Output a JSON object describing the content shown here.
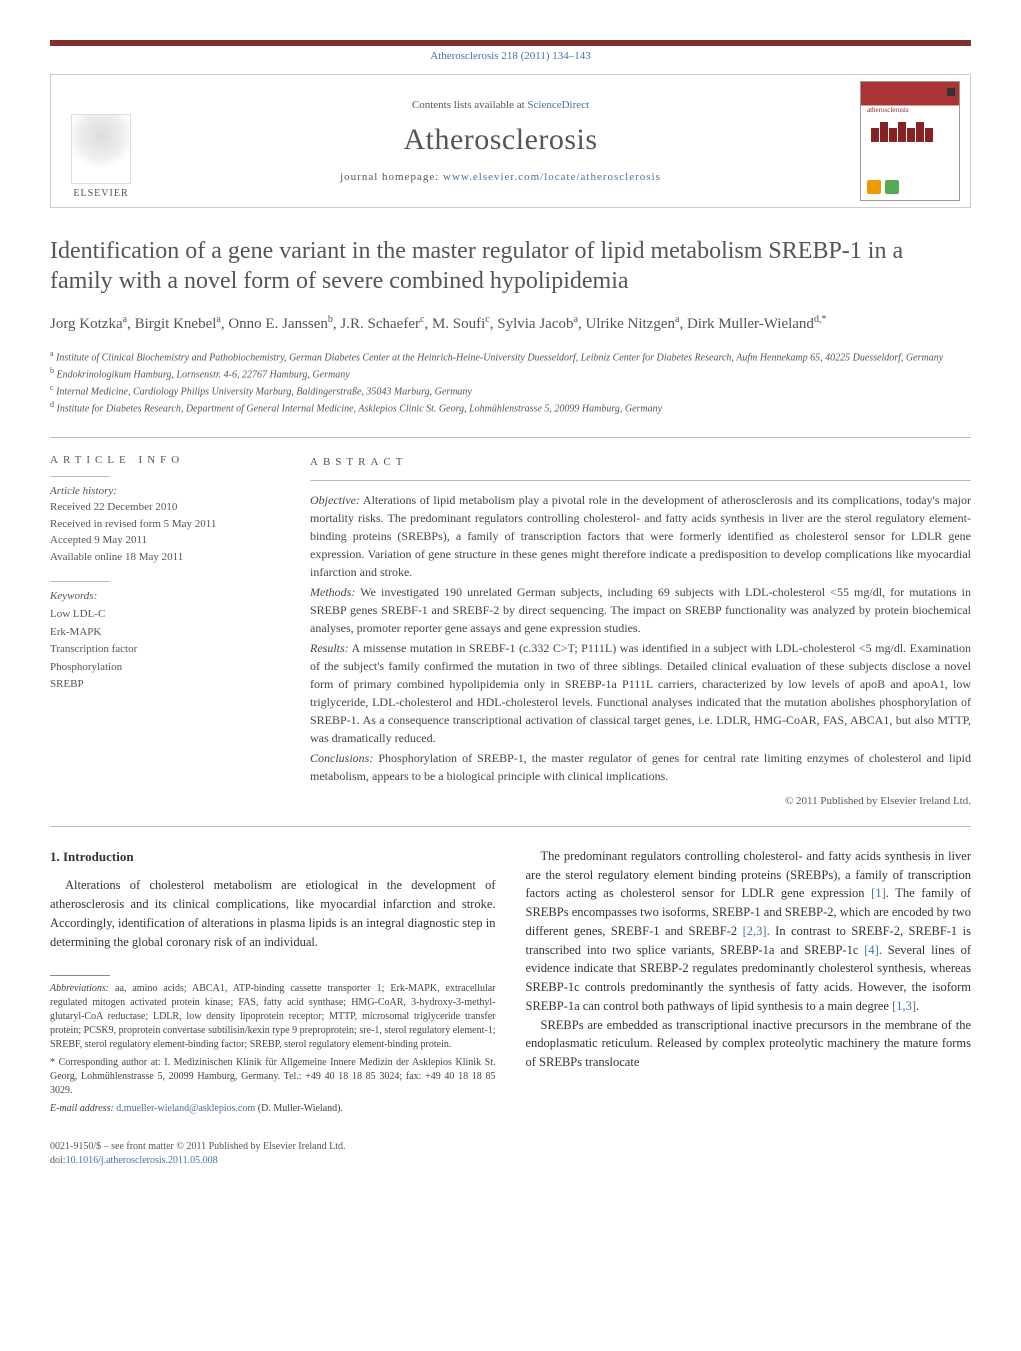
{
  "running_head": "Atherosclerosis 218 (2011) 134–143",
  "masthead": {
    "contents_prefix": "Contents lists available at ",
    "contents_link": "ScienceDirect",
    "journal": "Atherosclerosis",
    "homepage_prefix": "journal homepage: ",
    "homepage_url": "www.elsevier.com/locate/atherosclerosis",
    "publisher": "ELSEVIER",
    "cover_journal_label": "atherosclerosis"
  },
  "title": "Identification of a gene variant in the master regulator of lipid metabolism SREBP-1 in a family with a novel form of severe combined hypolipidemia",
  "authors_html": "Jorg Kotzka<sup>a</sup>, Birgit Knebel<sup>a</sup>, Onno E. Janssen<sup>b</sup>, J.R. Schaefer<sup>c</sup>, M. Soufi<sup>c</sup>, Sylvia Jacob<sup>a</sup>, Ulrike Nitzgen<sup>a</sup>, Dirk Muller-Wieland<sup>d,*</sup>",
  "affiliations": [
    "a Institute of Clinical Biochemistry and Pathobiochemistry, German Diabetes Center at the Heinrich-Heine-University Duesseldorf, Leibniz Center for Diabetes Research, Aufm Hennekamp 65, 40225 Duesseldorf, Germany",
    "b Endokrinologikum Hamburg, Lornsenstr. 4-6, 22767 Hamburg, Germany",
    "c Internal Medicine, Cardiology Philips University Marburg, Baldingerstraße, 35043 Marburg, Germany",
    "d Institute for Diabetes Research, Department of General Internal Medicine, Asklepios Clinic St. Georg, Lohmühlenstrasse 5, 20099 Hamburg, Germany"
  ],
  "article_info": {
    "heading": "article info",
    "history_label": "Article history:",
    "history": [
      "Received 22 December 2010",
      "Received in revised form 5 May 2011",
      "Accepted 9 May 2011",
      "Available online 18 May 2011"
    ],
    "keywords_label": "Keywords:",
    "keywords": [
      "Low LDL-C",
      "Erk-MAPK",
      "Transcription factor",
      "Phosphorylation",
      "SREBP"
    ]
  },
  "abstract": {
    "heading": "abstract",
    "paragraphs": [
      {
        "label": "Objective:",
        "text": " Alterations of lipid metabolism play a pivotal role in the development of atherosclerosis and its complications, today's major mortality risks. The predominant regulators controlling cholesterol- and fatty acids synthesis in liver are the sterol regulatory element-binding proteins (SREBPs), a family of transcription factors that were formerly identified as cholesterol sensor for LDLR gene expression. Variation of gene structure in these genes might therefore indicate a predisposition to develop complications like myocardial infarction and stroke."
      },
      {
        "label": "Methods:",
        "text": " We investigated 190 unrelated German subjects, including 69 subjects with LDL-cholesterol <55 mg/dl, for mutations in SREBP genes SREBF-1 and SREBF-2 by direct sequencing. The impact on SREBP functionality was analyzed by protein biochemical analyses, promoter reporter gene assays and gene expression studies."
      },
      {
        "label": "Results:",
        "text": " A missense mutation in SREBF-1 (c.332 C>T; P111L) was identified in a subject with LDL-cholesterol <5 mg/dl. Examination of the subject's family confirmed the mutation in two of three siblings. Detailed clinical evaluation of these subjects disclose a novel form of primary combined hypolipidemia only in SREBP-1a P111L carriers, characterized by low levels of apoB and apoA1, low triglyceride, LDL-cholesterol and HDL-cholesterol levels. Functional analyses indicated that the mutation abolishes phosphorylation of SREBP-1. As a consequence transcriptional activation of classical target genes, i.e. LDLR, HMG-CoAR, FAS, ABCA1, but also MTTP, was dramatically reduced."
      },
      {
        "label": "Conclusions:",
        "text": " Phosphorylation of SREBP-1, the master regulator of genes for central rate limiting enzymes of cholesterol and lipid metabolism, appears to be a biological principle with clinical implications."
      }
    ],
    "copyright": "© 2011 Published by Elsevier Ireland Ltd."
  },
  "body": {
    "section_heading": "1. Introduction",
    "paragraphs": [
      "Alterations of cholesterol metabolism are etiological in the development of atherosclerosis and its clinical complications, like myocardial infarction and stroke. Accordingly, identification of alterations in plasma lipids is an integral diagnostic step in determining the global coronary risk of an individual.",
      "The predominant regulators controlling cholesterol- and fatty acids synthesis in liver are the sterol regulatory element binding proteins (SREBPs), a family of transcription factors acting as cholesterol sensor for LDLR gene expression [1]. The family of SREBPs encompasses two isoforms, SREBP-1 and SREBP-2, which are encoded by two different genes, SREBF-1 and SREBF-2 [2,3]. In contrast to SREBF-2, SREBF-1 is transcribed into two splice variants, SREBP-1a and SREBP-1c [4]. Several lines of evidence indicate that SREBP-2 regulates predominantly cholesterol synthesis, whereas SREBP-1c controls predominantly the synthesis of fatty acids. However, the isoform SREBP-1a can control both pathways of lipid synthesis to a main degree [1,3].",
      "SREBPs are embedded as transcriptional inactive precursors in the membrane of the endoplasmatic reticulum. Released by complex proteolytic machinery the mature forms of SREBPs translocate"
    ]
  },
  "footnotes": {
    "abbr_label": "Abbreviations:",
    "abbr_text": " aa, amino acids; ABCA1, ATP-binding cassette transporter 1; Erk-MAPK, extracellular regulated mitogen activated protein kinase; FAS, fatty acid synthase; HMG-CoAR, 3-hydroxy-3-methyl-glutaryl-CoA reductase; LDLR, low density lipoprotein receptor; MTTP, microsomal triglyceride transfer protein; PCSK9, proprotein convertase subtilisin/kexin type 9 preproprotein; sre-1, sterol regulatory element-1; SREBF, sterol regulatory element-binding factor; SREBP, sterol regulatory element-binding protein.",
    "corr_label": "* Corresponding author at:",
    "corr_text": " I. Medizinischen Klinik für Allgemeine Innere Medizin der Asklepios Klinik St. Georg, Lohmühlenstrasse 5, 20099 Hamburg, Germany. Tel.: +49 40 18 18 85 3024; fax: +49 40 18 18 85 3029.",
    "email_label": "E-mail address: ",
    "email": "d.mueller-wieland@asklepios.com",
    "email_suffix": " (D. Muller-Wieland)."
  },
  "bottom": {
    "issn_line": "0021-9150/$ – see front matter © 2011 Published by Elsevier Ireland Ltd.",
    "doi_prefix": "doi:",
    "doi": "10.1016/j.atherosclerosis.2011.05.008"
  },
  "colors": {
    "bar": "#822f2f",
    "link": "#4a6fa5",
    "text": "#333333",
    "muted": "#555555"
  }
}
